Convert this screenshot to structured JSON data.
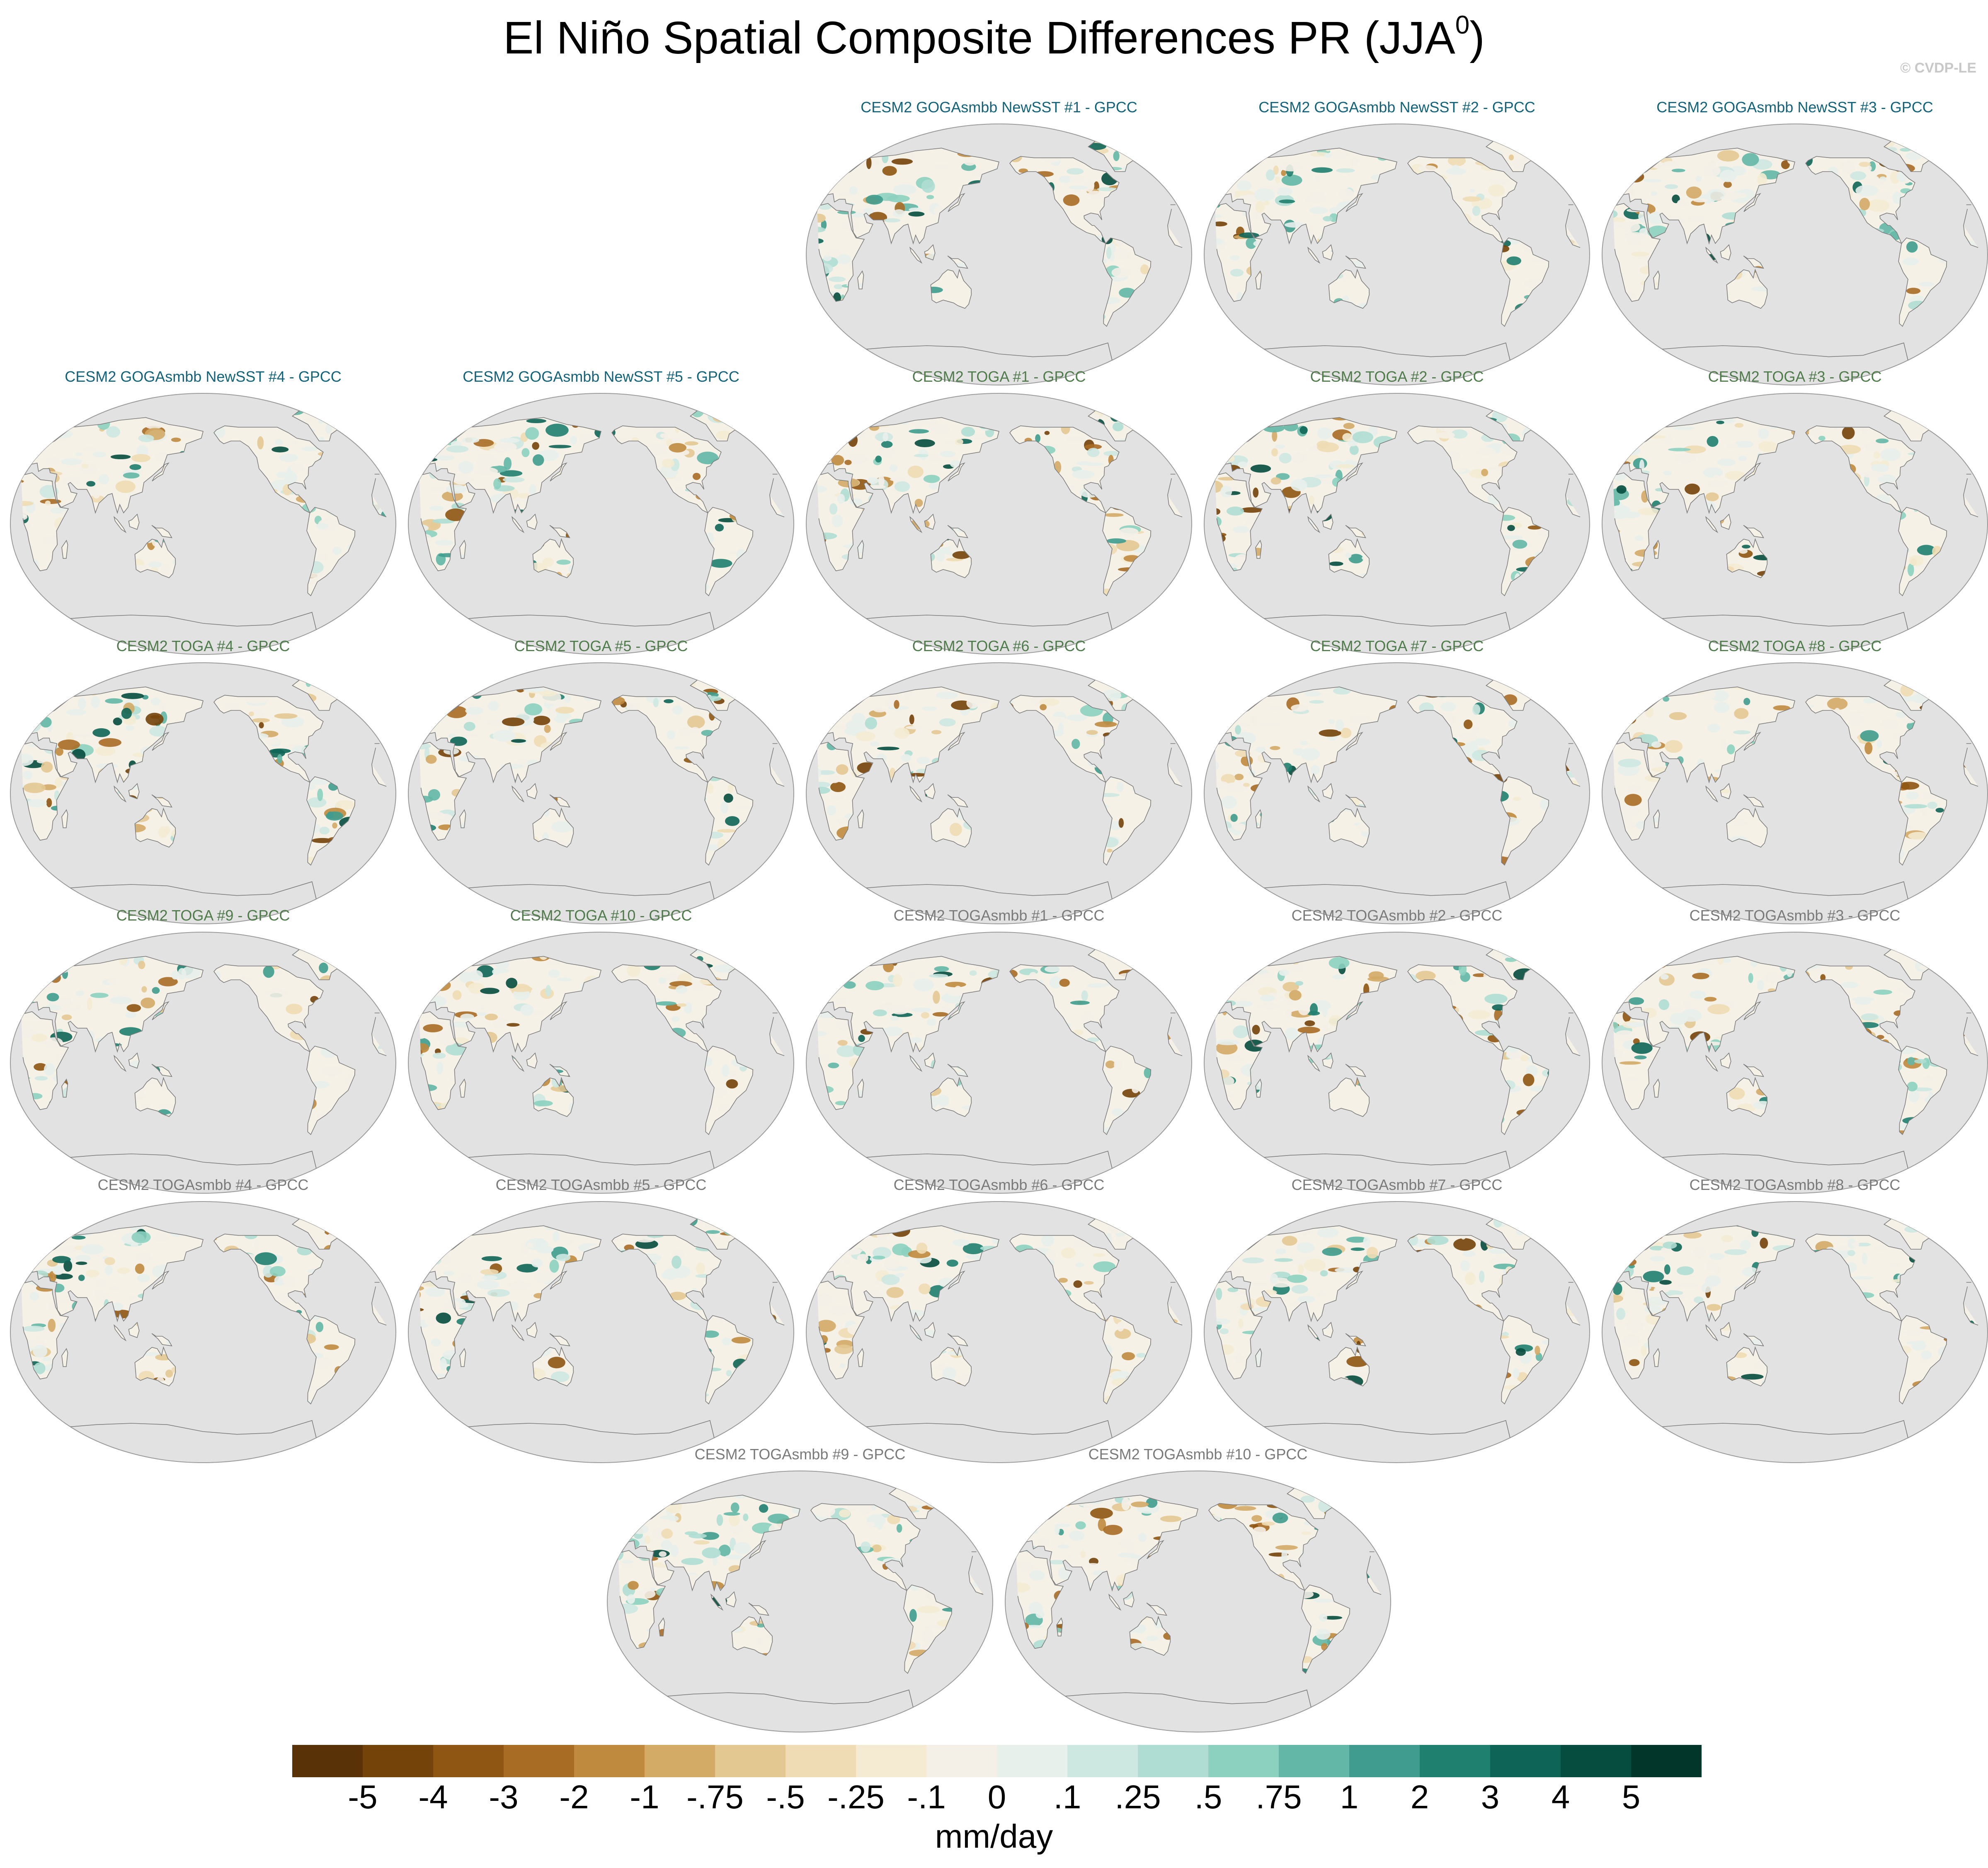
{
  "title": {
    "main": "El Niño Spatial Composite Differences PR (JJA",
    "sup": "0",
    "close": ")"
  },
  "credit": "© CVDP-LE",
  "colors": {
    "gogas_title": "#12637a",
    "toga_title": "#4f7b4b",
    "togasmbb_title": "#7a7a7a",
    "ocean": "#e2e2e2",
    "land_base": "#f5f1e6"
  },
  "panels": [
    {
      "title": "CESM2 GOGAsmbb NewSST #1 - GPCC",
      "group": "gogas"
    },
    {
      "title": "CESM2 GOGAsmbb NewSST #2 - GPCC",
      "group": "gogas"
    },
    {
      "title": "CESM2 GOGAsmbb NewSST #3 - GPCC",
      "group": "gogas"
    },
    {
      "title": "CESM2 GOGAsmbb NewSST #4 - GPCC",
      "group": "gogas"
    },
    {
      "title": "CESM2 GOGAsmbb NewSST #5 - GPCC",
      "group": "gogas"
    },
    {
      "title": "CESM2 TOGA #1 - GPCC",
      "group": "toga"
    },
    {
      "title": "CESM2 TOGA #2 - GPCC",
      "group": "toga"
    },
    {
      "title": "CESM2 TOGA #3 - GPCC",
      "group": "toga"
    },
    {
      "title": "CESM2 TOGA #4 - GPCC",
      "group": "toga"
    },
    {
      "title": "CESM2 TOGA #5 - GPCC",
      "group": "toga"
    },
    {
      "title": "CESM2 TOGA #6 - GPCC",
      "group": "toga"
    },
    {
      "title": "CESM2 TOGA #7 - GPCC",
      "group": "toga"
    },
    {
      "title": "CESM2 TOGA #8 - GPCC",
      "group": "toga"
    },
    {
      "title": "CESM2 TOGA #9 - GPCC",
      "group": "toga"
    },
    {
      "title": "CESM2 TOGA #10 - GPCC",
      "group": "toga"
    },
    {
      "title": "CESM2 TOGAsmbb #1 - GPCC",
      "group": "togasmbb"
    },
    {
      "title": "CESM2 TOGAsmbb #2 - GPCC",
      "group": "togasmbb"
    },
    {
      "title": "CESM2 TOGAsmbb #3 - GPCC",
      "group": "togasmbb"
    },
    {
      "title": "CESM2 TOGAsmbb #4 - GPCC",
      "group": "togasmbb"
    },
    {
      "title": "CESM2 TOGAsmbb #5 - GPCC",
      "group": "togasmbb"
    },
    {
      "title": "CESM2 TOGAsmbb #6 - GPCC",
      "group": "togasmbb"
    },
    {
      "title": "CESM2 TOGAsmbb #7 - GPCC",
      "group": "togasmbb"
    },
    {
      "title": "CESM2 TOGAsmbb #8 - GPCC",
      "group": "togasmbb"
    },
    {
      "title": "CESM2 TOGAsmbb #9 - GPCC",
      "group": "togasmbb"
    },
    {
      "title": "CESM2 TOGAsmbb #10 - GPCC",
      "group": "togasmbb"
    }
  ],
  "colorbar": {
    "colors": [
      "#5a3208",
      "#744309",
      "#8f5512",
      "#a86c25",
      "#c08a3e",
      "#d3aa66",
      "#e3c891",
      "#efdcb4",
      "#f4ebd2",
      "#f4f0e8",
      "#e8f0ec",
      "#cde8e1",
      "#afddd3",
      "#8cd0c0",
      "#63b7a6",
      "#3f9c8e",
      "#20806f",
      "#0e6557",
      "#064c3f",
      "#03362b"
    ],
    "labels": [
      "-5",
      "-4",
      "-3",
      "-2",
      "-1",
      "-.75",
      "-.5",
      "-.25",
      "-.1",
      "0",
      ".1",
      ".25",
      ".5",
      ".75",
      "1",
      "2",
      "3",
      "4",
      "5"
    ],
    "units": "mm/day"
  }
}
